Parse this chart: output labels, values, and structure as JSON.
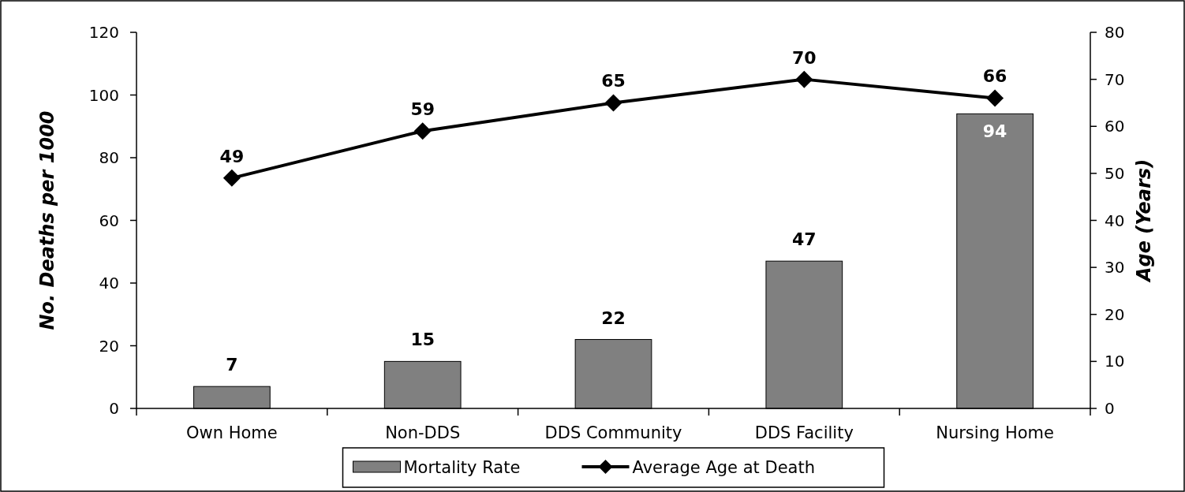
{
  "chart_data": {
    "type": "bar",
    "categories": [
      "Own Home",
      "Non-DDS",
      "DDS Community",
      "DDS Facility",
      "Nursing Home"
    ],
    "series": [
      {
        "name": "Mortality Rate",
        "color": "#808080",
        "values": [
          7,
          15,
          22,
          47,
          94
        ]
      },
      {
        "name": "Average Age at Death",
        "type": "line",
        "axis": "y2",
        "color": "#000000",
        "marker": "diamond",
        "values": [
          49,
          59,
          65,
          70,
          66
        ]
      }
    ],
    "ylabel": "No. Deaths per 1000",
    "y2label": "Age (Years)",
    "ylim": [
      0,
      120
    ],
    "yticks": [
      0,
      20,
      40,
      60,
      80,
      100,
      120
    ],
    "y2lim": [
      0,
      80
    ],
    "y2ticks": [
      0,
      10,
      20,
      30,
      40,
      50,
      60,
      70,
      80
    ],
    "data_labels": true,
    "legend": "bottom",
    "grid": false
  }
}
